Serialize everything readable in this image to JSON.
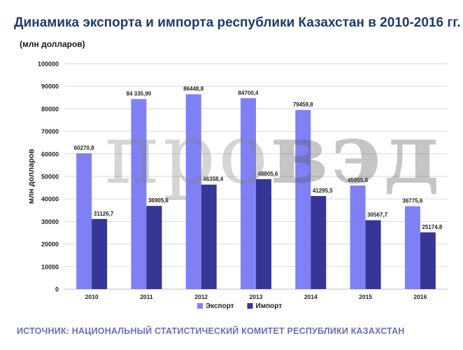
{
  "title": "Динамика экспорта и импорта республики Казахстан в 2010-2016 гг.",
  "subtitle": "(млн долларов)",
  "source": "ИСТОЧНИК: НАЦИОНАЛЬНЫЙ СТАТИСТИЧЕСКИЙ КОМИТЕТ РЕСПУБЛИКИ КАЗАХСТАН",
  "watermark": {
    "light": "про",
    "bold": "вэд"
  },
  "chart_data": {
    "type": "bar",
    "categories": [
      "2010",
      "2011",
      "2012",
      "2013",
      "2014",
      "2015",
      "2016"
    ],
    "ylabel": "млн долларов",
    "ylim": [
      0,
      100000
    ],
    "yticks": [
      "0",
      "10000",
      "20000",
      "30000",
      "40000",
      "50000",
      "60000",
      "70000",
      "80000",
      "90000",
      "100000"
    ],
    "grid": true,
    "legend_position": "bottom",
    "series": [
      {
        "name": "Экспорт",
        "color": "#8080f5",
        "values": [
          60270.8,
          84335.9,
          86448.8,
          84700.4,
          79459.8,
          45955.8,
          36775.6
        ],
        "labels": [
          "60270,8",
          "84 335,90",
          "86448,8",
          "84700,4",
          "79459,8",
          "45955,8",
          "36775,6"
        ]
      },
      {
        "name": "Импорт",
        "color": "#363696",
        "values": [
          31126.7,
          36905.8,
          46358.4,
          48805.6,
          41295.5,
          30567.7,
          25174.8
        ],
        "labels": [
          "31126,7",
          "36905,8",
          "46358,4",
          "48805,6",
          "41295,5",
          "30567,7",
          "25174,8"
        ]
      }
    ]
  }
}
